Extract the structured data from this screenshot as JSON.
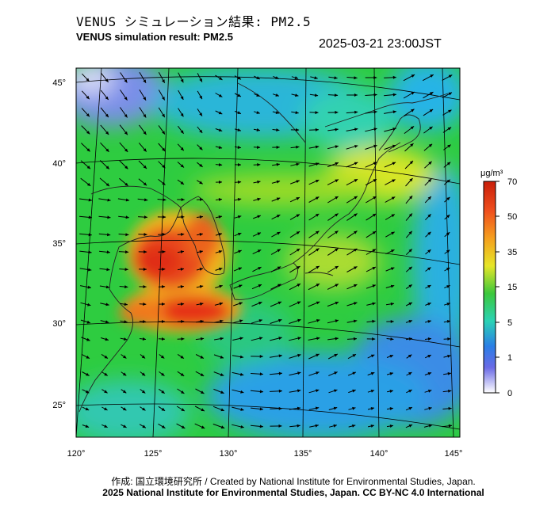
{
  "header": {
    "title_jp": "VENUS シミュレーション結果: PM2.5",
    "title_en": "VENUS simulation result: PM2.5",
    "timestamp": "2025-03-21 23:00JST"
  },
  "map": {
    "lon_ticks": [
      "120°",
      "125°",
      "130°",
      "135°",
      "140°",
      "145°"
    ],
    "lat_ticks": [
      "45°",
      "40°",
      "35°",
      "30°",
      "25°"
    ],
    "colors": {
      "ocean_low": "#3aa0e6",
      "green": "#2ecc2e",
      "yellow": "#e6e628",
      "red": "#e63219",
      "orange": "#f07a1e"
    }
  },
  "colorbar": {
    "unit": "μg/m³",
    "labels": [
      "70",
      "50",
      "35",
      "15",
      "5",
      "1",
      "0"
    ]
  },
  "footer": {
    "credit": "作成: 国立環境研究所 / Created by National Institute for Environmental Studies, Japan.",
    "license": "2025 National Institute for Environmental Studies, Japan. CC BY-NC 4.0 International"
  }
}
